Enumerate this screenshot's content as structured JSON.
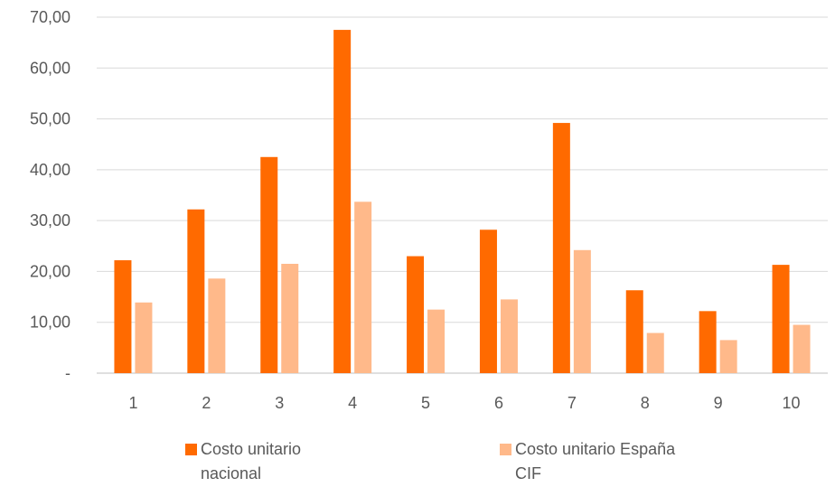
{
  "chart_data": {
    "type": "bar",
    "title": "",
    "xlabel": "",
    "ylabel": "",
    "categories": [
      "1",
      "2",
      "3",
      "4",
      "5",
      "6",
      "7",
      "8",
      "9",
      "10"
    ],
    "ylim": [
      0,
      70
    ],
    "ytick_labels": [
      "-",
      "10,00",
      "20,00",
      "30,00",
      "40,00",
      "50,00",
      "60,00",
      "70,00"
    ],
    "grid": true,
    "legend_position": "bottom",
    "series": [
      {
        "name_lines": [
          "Costo unitario",
          "nacional"
        ],
        "color": "#FF6A00",
        "values": [
          22.2,
          32.2,
          42.5,
          67.5,
          23.0,
          28.2,
          49.2,
          16.3,
          12.2,
          21.3
        ]
      },
      {
        "name_lines": [
          "Costo unitario España",
          "CIF"
        ],
        "color": "#FFB98A",
        "values": [
          13.9,
          18.6,
          21.5,
          33.7,
          12.5,
          14.5,
          24.2,
          7.9,
          6.5,
          9.5
        ]
      }
    ]
  }
}
